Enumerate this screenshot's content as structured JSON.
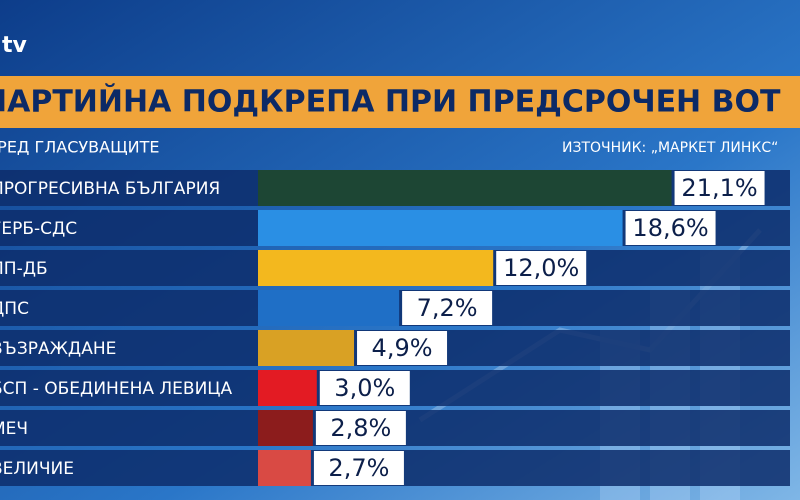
{
  "logo": "tv",
  "chart_data": {
    "type": "bar",
    "orientation": "horizontal",
    "title": "ПАРТИЙНА ПОДКРЕПА ПРИ ПРЕДСРОЧЕН ВОТ",
    "subtitle": "СРЕД ГЛАСУВАЩИТЕ",
    "source": "ИЗТОЧНИК: „МАРКЕТ ЛИНКС“",
    "categories": [
      "ПРОГРЕСИВНА БЪЛГАРИЯ",
      "ГЕРБ-СДС",
      "ПП-ДБ",
      "ДПС",
      "ВЪЗРАЖДАНЕ",
      "БСП - ОБЕДИНЕНА ЛЕВИЦА",
      "МЕЧ",
      "ВЕЛИЧИЕ"
    ],
    "values": [
      21.1,
      18.6,
      12.0,
      7.2,
      4.9,
      3.0,
      2.8,
      2.7
    ],
    "value_labels": [
      "21,1%",
      "18,6%",
      "12,0%",
      "7,2%",
      "4,9%",
      "3,0%",
      "2,8%",
      "2,7%"
    ],
    "colors": [
      "#1d4634",
      "#2a8fe4",
      "#f3b81e",
      "#1f6fc6",
      "#d9a124",
      "#e31b23",
      "#8c1c1c",
      "#d94a44"
    ]
  }
}
